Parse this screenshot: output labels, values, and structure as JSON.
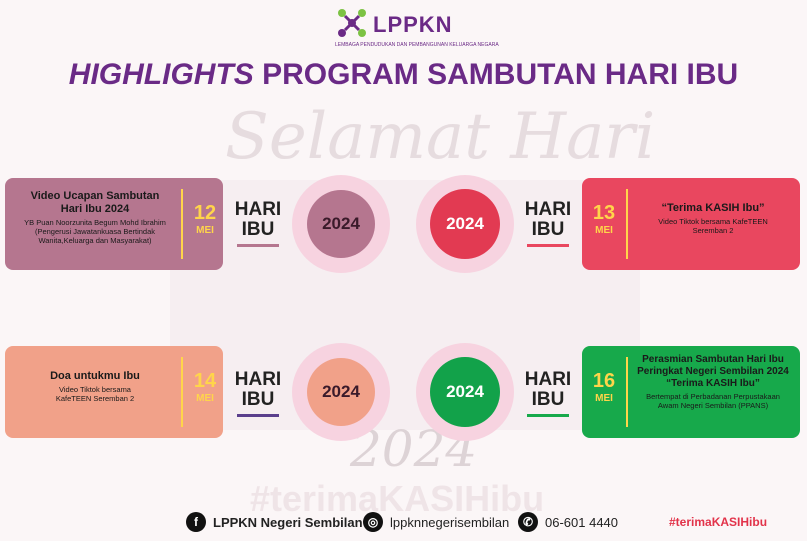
{
  "brand": {
    "name": "LPPKN",
    "subtitle": "LEMBAGA PENDUDUKAN DAN PEMBANGUNAN KELUARGA NEGARA"
  },
  "title": {
    "italic": "HIGHLIGHTS",
    "rest": "PROGRAM SAMBUTAN HARI IBU"
  },
  "background": {
    "greeting": "Selamat Hari",
    "year": "2024",
    "hashtag": "#terimaKASIHibu"
  },
  "events": [
    {
      "title": "Video Ucapan Sambutan Hari Ibu 2024",
      "desc": "YB Puan Noorzunita Begum Mohd Ibrahim (Pengerusi Jawatankuasa Bertindak Wanita,Keluarga dan Masyarakat)",
      "day": "12",
      "month": "MEI",
      "hari": "HARI",
      "ibu": "IBU",
      "year": "2024"
    },
    {
      "title": "“Terima KASIH Ibu”",
      "desc": "Video Tiktok bersama KafeTEEN Seremban 2",
      "day": "13",
      "month": "MEI",
      "hari": "HARI",
      "ibu": "IBU",
      "year": "2024"
    },
    {
      "title": "Doa untukmu Ibu",
      "desc": "Video Tiktok bersama KafeTEEN Seremban 2",
      "day": "14",
      "month": "MEI",
      "hari": "HARI",
      "ibu": "IBU",
      "year": "2024"
    },
    {
      "title": "Perasmian Sambutan Hari Ibu Peringkat Negeri Sembilan 2024 “Terima KASIH Ibu”",
      "desc": "Bertempat di Perbadanan Perpustakaan Awam Negeri Sembilan (PPANS)",
      "day": "16",
      "month": "MEI",
      "hari": "HARI",
      "ibu": "IBU",
      "year": "2024"
    }
  ],
  "footer": {
    "facebook": "LPPKN Negeri Sembilan",
    "instagram": "lppknnegerisembilan",
    "phone": "06-601 4440",
    "hashtag": "#terimaKASIHibu"
  },
  "colors": {
    "purple": "#6a2a86",
    "mauve": "#b5768f",
    "red": "#e9475f",
    "peach": "#f1a189",
    "green": "#17a94b",
    "gold": "#ffd54a"
  }
}
